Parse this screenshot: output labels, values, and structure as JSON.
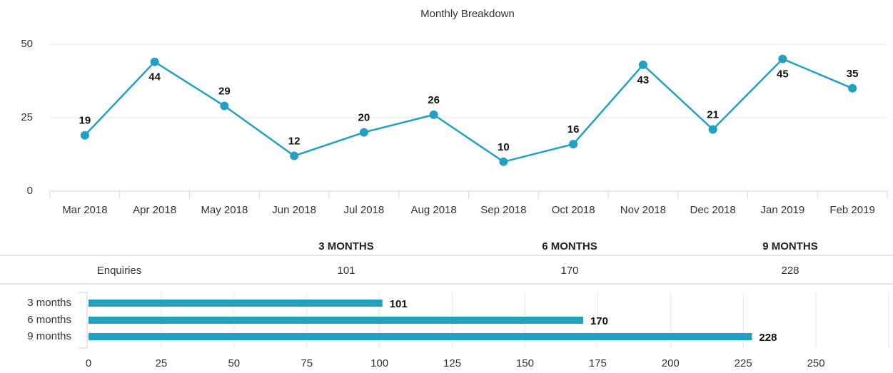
{
  "chart_data": [
    {
      "type": "line",
      "title": "Monthly Breakdown",
      "categories": [
        "Mar 2018",
        "Apr 2018",
        "May 2018",
        "Jun 2018",
        "Jul 2018",
        "Aug 2018",
        "Sep 2018",
        "Oct 2018",
        "Nov 2018",
        "Dec 2018",
        "Jan 2019",
        "Feb 2019"
      ],
      "values": [
        19,
        44,
        29,
        12,
        20,
        26,
        10,
        16,
        43,
        21,
        45,
        35
      ],
      "color": "#22a0c3",
      "ylim": [
        0,
        50
      ],
      "yticks": [
        0,
        25,
        50
      ],
      "grid": true
    },
    {
      "type": "bar",
      "orientation": "horizontal",
      "categories": [
        "3 months",
        "6 months",
        "9 months"
      ],
      "values": [
        101,
        170,
        228
      ],
      "color": "#22a0c3",
      "xlim": [
        0,
        275
      ],
      "xticks": [
        0,
        25,
        50,
        75,
        100,
        125,
        150,
        175,
        200,
        225,
        250
      ],
      "grid": true
    }
  ],
  "table": {
    "columns": [
      "3 MONTHS",
      "6 MONTHS",
      "9 MONTHS"
    ],
    "rows": [
      [
        "Enquiries",
        101,
        170,
        228
      ]
    ]
  }
}
